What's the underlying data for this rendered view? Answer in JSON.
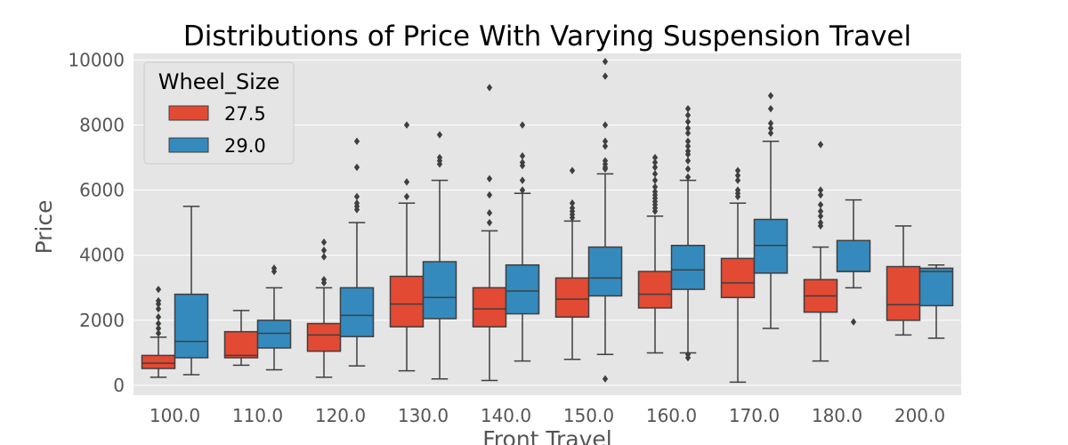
{
  "chart_data": {
    "type": "box",
    "title": "Distributions of Price With Varying Suspension Travel",
    "xlabel": "Front Travel",
    "ylabel": "Price",
    "ylim": [
      -300,
      10200
    ],
    "yticks": [
      0,
      2000,
      4000,
      6000,
      8000,
      10000
    ],
    "grid": true,
    "legend": {
      "title": "Wheel_Size",
      "position": "top-left"
    },
    "categories": [
      "100.0",
      "110.0",
      "120.0",
      "130.0",
      "140.0",
      "150.0",
      "160.0",
      "170.0",
      "180.0",
      "200.0"
    ],
    "series": [
      {
        "name": "27.5",
        "color": "#E24A33",
        "boxes": [
          {
            "whislo": 250,
            "q1": 520,
            "med": 680,
            "q3": 920,
            "whishi": 1480,
            "fliers": [
              1600,
              1750,
              1900,
              2100,
              2350,
              2500,
              2600,
              2950
            ]
          },
          {
            "whislo": 620,
            "q1": 850,
            "med": 920,
            "q3": 1650,
            "whishi": 2300,
            "fliers": []
          },
          {
            "whislo": 250,
            "q1": 1050,
            "med": 1550,
            "q3": 1900,
            "whishi": 3000,
            "fliers": [
              3150,
              3250,
              3950,
              4150,
              4400
            ]
          },
          {
            "whislo": 450,
            "q1": 1800,
            "med": 2500,
            "q3": 3350,
            "whishi": 5600,
            "fliers": [
              5800,
              6250,
              8000
            ]
          },
          {
            "whislo": 150,
            "q1": 1800,
            "med": 2350,
            "q3": 3000,
            "whishi": 4750,
            "fliers": [
              5000,
              5300,
              5850,
              6350,
              9150
            ]
          },
          {
            "whislo": 800,
            "q1": 2100,
            "med": 2650,
            "q3": 3300,
            "whishi": 5050,
            "fliers": [
              5150,
              5250,
              5350,
              5450,
              5600,
              6600
            ]
          },
          {
            "whislo": 1000,
            "q1": 2380,
            "med": 2800,
            "q3": 3500,
            "whishi": 5200,
            "fliers": [
              5350,
              5450,
              5550,
              5650,
              5750,
              5850,
              5950,
              6100,
              6300,
              6500,
              6700,
              6850,
              7000
            ]
          },
          {
            "whislo": 100,
            "q1": 2700,
            "med": 3150,
            "q3": 3900,
            "whishi": 5600,
            "fliers": [
              5800,
              5900,
              6000,
              6300,
              6450,
              6600
            ]
          },
          {
            "whislo": 750,
            "q1": 2250,
            "med": 2750,
            "q3": 3250,
            "whishi": 4250,
            "fliers": [
              4900,
              5000,
              5200,
              5350,
              5550,
              5850,
              6000,
              7400
            ]
          },
          {
            "whislo": 1550,
            "q1": 2000,
            "med": 2480,
            "q3": 3650,
            "whishi": 4900,
            "fliers": []
          }
        ]
      },
      {
        "name": "29.0",
        "color": "#348ABD",
        "boxes": [
          {
            "whislo": 330,
            "q1": 850,
            "med": 1350,
            "q3": 2800,
            "whishi": 5500,
            "fliers": []
          },
          {
            "whislo": 480,
            "q1": 1150,
            "med": 1600,
            "q3": 2000,
            "whishi": 3000,
            "fliers": [
              3500,
              3600
            ]
          },
          {
            "whislo": 600,
            "q1": 1500,
            "med": 2150,
            "q3": 3000,
            "whishi": 5000,
            "fliers": [
              5400,
              5500,
              5600,
              5800,
              6700,
              7500
            ]
          },
          {
            "whislo": 200,
            "q1": 2050,
            "med": 2700,
            "q3": 3800,
            "whishi": 6300,
            "fliers": [
              6800,
              6900,
              7000,
              7700
            ]
          },
          {
            "whislo": 750,
            "q1": 2200,
            "med": 2900,
            "q3": 3700,
            "whishi": 5900,
            "fliers": [
              6000,
              6300,
              6750,
              6850,
              7050,
              8000
            ]
          },
          {
            "whislo": 950,
            "q1": 2750,
            "med": 3300,
            "q3": 4250,
            "whishi": 6500,
            "fliers": [
              200,
              6650,
              6700,
              6800,
              6900,
              7350,
              7500,
              8000,
              9500,
              9950
            ]
          },
          {
            "whislo": 1000,
            "q1": 2950,
            "med": 3550,
            "q3": 4300,
            "whishi": 6300,
            "fliers": [
              850,
              950,
              6400,
              6650,
              6900,
              7100,
              7200,
              7350,
              7500,
              7750,
              7900,
              8100,
              8300,
              8500
            ]
          },
          {
            "whislo": 1750,
            "q1": 3450,
            "med": 4300,
            "q3": 5100,
            "whishi": 7500,
            "fliers": [
              7750,
              7900,
              8050,
              8500,
              8900
            ]
          },
          {
            "whislo": 3000,
            "q1": 3500,
            "med": 3500,
            "q3": 4450,
            "whishi": 5700,
            "fliers": [
              1950
            ]
          },
          {
            "whislo": 1450,
            "q1": 2450,
            "med": 3500,
            "q3": 3600,
            "whishi": 3700,
            "fliers": []
          }
        ]
      }
    ]
  }
}
